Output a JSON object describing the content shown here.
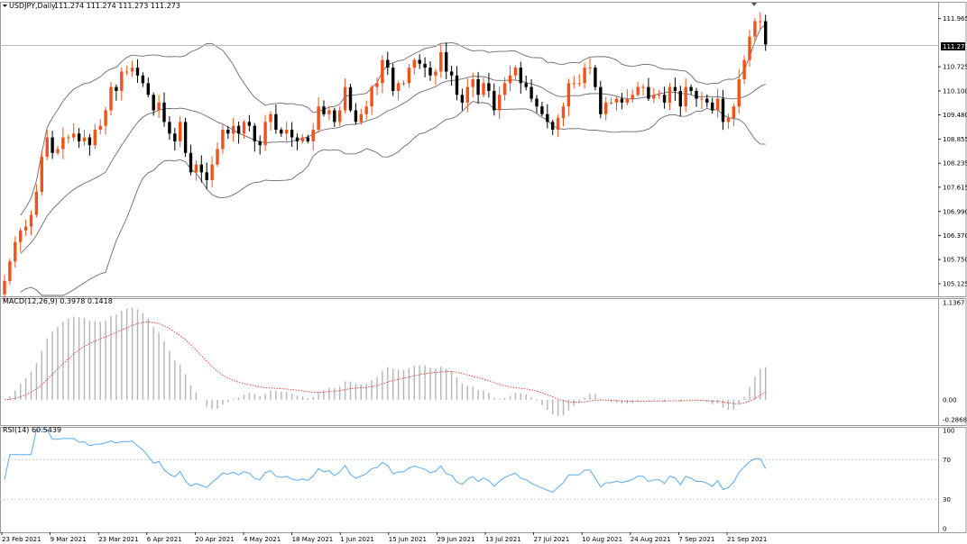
{
  "chart_data": {
    "type": "candlestick",
    "colors": {
      "up": "#f2521a",
      "down": "#000000",
      "bands": "#6b6b6b",
      "signal": "#e8362a",
      "macd_hist": "#b4b4b4",
      "rsi": "#5aaaf0",
      "price_line": "#b8b8b8",
      "frame": "#9a9a9a"
    },
    "main": {
      "title": "USDJPY,Daily",
      "ohlc_label": "111.274 111.274 111.273 111.273",
      "current_price_label": "111.273",
      "current_price": 111.273,
      "ylim": [
        104.8,
        112.4
      ],
      "ytick_labels": [
        "111.965",
        "110.725",
        "110.100",
        "109.480",
        "108.855",
        "108.235",
        "107.615",
        "106.990",
        "106.370",
        "105.750",
        "105.125"
      ]
    },
    "macd": {
      "title": "MACD(12,26,9) 0.3978 0.1418",
      "ytick_labels": [
        "1.1367",
        "0.00",
        "-0.2868"
      ],
      "ylim": [
        -0.3,
        1.2
      ]
    },
    "rsi": {
      "title": "RSI(14) 60.5439",
      "ytick_labels": [
        "100",
        "70",
        "30",
        "0"
      ],
      "levels": [
        70,
        30
      ],
      "ylim": [
        0,
        100
      ]
    },
    "xtick_labels": [
      "23 Feb 2021",
      "9 Mar 2021",
      "23 Mar 2021",
      "6 Apr 2021",
      "20 Apr 2021",
      "4 May 2021",
      "18 May 2021",
      "1 Jun 2021",
      "15 Jun 2021",
      "29 Jun 2021",
      "13 Jul 2021",
      "27 Jul 2021",
      "10 Aug 2021",
      "24 Aug 2021",
      "7 Sep 2021",
      "21 Sep 2021"
    ],
    "closes": [
      105.2,
      105.7,
      106.2,
      106.5,
      106.6,
      106.9,
      107.5,
      108.4,
      108.9,
      108.5,
      108.6,
      108.9,
      108.9,
      109.0,
      108.8,
      108.9,
      108.7,
      109.1,
      109.2,
      109.6,
      110.2,
      110.1,
      110.6,
      110.6,
      110.7,
      110.5,
      110.3,
      110.0,
      109.6,
      109.8,
      109.3,
      109.0,
      108.8,
      109.3,
      108.5,
      108.0,
      108.2,
      108.0,
      107.8,
      108.2,
      108.6,
      109.1,
      109.0,
      109.2,
      109.0,
      109.3,
      109.2,
      108.8,
      108.7,
      109.3,
      109.5,
      109.1,
      109.0,
      109.1,
      108.9,
      108.8,
      108.9,
      108.8,
      109.1,
      109.7,
      109.5,
      109.6,
      109.3,
      109.6,
      110.2,
      109.6,
      109.3,
      109.5,
      109.7,
      110.2,
      110.3,
      110.9,
      110.7,
      110.1,
      110.3,
      110.3,
      110.7,
      110.9,
      110.8,
      110.7,
      110.5,
      110.6,
      111.1,
      110.6,
      110.5,
      110.0,
      109.8,
      110.2,
      110.4,
      110.0,
      110.3,
      110.1,
      109.6,
      110.0,
      110.3,
      110.5,
      110.7,
      110.3,
      110.2,
      109.9,
      109.7,
      109.5,
      109.3,
      109.1,
      109.4,
      109.7,
      110.3,
      110.3,
      110.3,
      110.7,
      110.7,
      110.2,
      109.5,
      109.8,
      109.8,
      109.9,
      109.8,
      109.9,
      110.0,
      110.2,
      110.2,
      109.9,
      110.0,
      110.0,
      109.8,
      110.2,
      110.1,
      109.7,
      110.2,
      110.1,
      109.9,
      109.9,
      109.8,
      109.6,
      109.9,
      109.3,
      109.4,
      109.7,
      110.4,
      110.9,
      111.5,
      111.9,
      111.9,
      111.3
    ]
  }
}
